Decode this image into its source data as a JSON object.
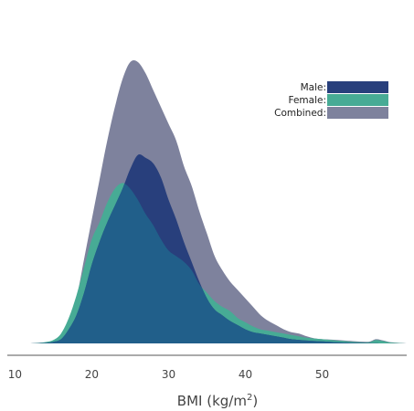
{
  "chart_data": {
    "type": "area",
    "title": "",
    "xlabel": "BMI (kg/m",
    "xlabel_sup": "2",
    "xlabel_close": ")",
    "ylabel": "",
    "xlim": [
      9,
      61
    ],
    "ylim": [
      0,
      1.0
    ],
    "grid": false,
    "legend_placement": "top-right",
    "x_ticks": [
      "10",
      "20",
      "30",
      "40",
      "50"
    ],
    "x_tick_values": [
      10,
      20,
      30,
      40,
      50
    ],
    "series": [
      {
        "name": "Combined:",
        "key": "combined",
        "color": "#7e829d",
        "points": [
          [
            9,
            0
          ],
          [
            12,
            0
          ],
          [
            14,
            0.003
          ],
          [
            15,
            0.01
          ],
          [
            16,
            0.03
          ],
          [
            17,
            0.08
          ],
          [
            18,
            0.16
          ],
          [
            19,
            0.3
          ],
          [
            20,
            0.44
          ],
          [
            21,
            0.58
          ],
          [
            22,
            0.72
          ],
          [
            23,
            0.84
          ],
          [
            24,
            0.94
          ],
          [
            25,
            1.0
          ],
          [
            26,
            1.0
          ],
          [
            27,
            0.96
          ],
          [
            28,
            0.9
          ],
          [
            29,
            0.84
          ],
          [
            30,
            0.78
          ],
          [
            31,
            0.72
          ],
          [
            32,
            0.63
          ],
          [
            33,
            0.56
          ],
          [
            34,
            0.47
          ],
          [
            35,
            0.39
          ],
          [
            36,
            0.31
          ],
          [
            37,
            0.26
          ],
          [
            38,
            0.22
          ],
          [
            39,
            0.19
          ],
          [
            40,
            0.16
          ],
          [
            41,
            0.13
          ],
          [
            42,
            0.1
          ],
          [
            43,
            0.08
          ],
          [
            44,
            0.065
          ],
          [
            45,
            0.05
          ],
          [
            46,
            0.04
          ],
          [
            47,
            0.035
          ],
          [
            48,
            0.025
          ],
          [
            49,
            0.018
          ],
          [
            50,
            0.015
          ],
          [
            52,
            0.012
          ],
          [
            54,
            0.008
          ],
          [
            56,
            0.006
          ],
          [
            57,
            0.015
          ],
          [
            58,
            0.01
          ],
          [
            59,
            0.004
          ],
          [
            61,
            0
          ]
        ]
      },
      {
        "name": "Female:",
        "key": "female",
        "color": "#47ab95",
        "points": [
          [
            9,
            0
          ],
          [
            12,
            0
          ],
          [
            14,
            0.005
          ],
          [
            15,
            0.012
          ],
          [
            16,
            0.035
          ],
          [
            17,
            0.09
          ],
          [
            18,
            0.17
          ],
          [
            19,
            0.27
          ],
          [
            20,
            0.37
          ],
          [
            21,
            0.43
          ],
          [
            22,
            0.5
          ],
          [
            23,
            0.55
          ],
          [
            24,
            0.57
          ],
          [
            25,
            0.55
          ],
          [
            26,
            0.51
          ],
          [
            27,
            0.46
          ],
          [
            28,
            0.42
          ],
          [
            29,
            0.37
          ],
          [
            30,
            0.33
          ],
          [
            31,
            0.31
          ],
          [
            32,
            0.29
          ],
          [
            33,
            0.26
          ],
          [
            34,
            0.21
          ],
          [
            35,
            0.18
          ],
          [
            36,
            0.15
          ],
          [
            37,
            0.13
          ],
          [
            38,
            0.115
          ],
          [
            39,
            0.09
          ],
          [
            40,
            0.075
          ],
          [
            41,
            0.06
          ],
          [
            42,
            0.05
          ],
          [
            43,
            0.045
          ],
          [
            44,
            0.04
          ],
          [
            45,
            0.035
          ],
          [
            46,
            0.03
          ],
          [
            47,
            0.025
          ],
          [
            48,
            0.02
          ],
          [
            50,
            0.015
          ],
          [
            52,
            0.01
          ],
          [
            54,
            0.006
          ],
          [
            56,
            0.004
          ],
          [
            57,
            0.012
          ],
          [
            58,
            0.008
          ],
          [
            59,
            0.003
          ],
          [
            61,
            0
          ]
        ]
      },
      {
        "name": "Male:",
        "key": "male",
        "color": "#283f7c",
        "points": [
          [
            9,
            0
          ],
          [
            12,
            0
          ],
          [
            14,
            0.002
          ],
          [
            15,
            0.006
          ],
          [
            16,
            0.015
          ],
          [
            17,
            0.05
          ],
          [
            18,
            0.1
          ],
          [
            19,
            0.18
          ],
          [
            20,
            0.28
          ],
          [
            21,
            0.36
          ],
          [
            22,
            0.43
          ],
          [
            23,
            0.49
          ],
          [
            24,
            0.55
          ],
          [
            25,
            0.62
          ],
          [
            26,
            0.67
          ],
          [
            27,
            0.66
          ],
          [
            28,
            0.64
          ],
          [
            29,
            0.59
          ],
          [
            30,
            0.51
          ],
          [
            31,
            0.44
          ],
          [
            32,
            0.36
          ],
          [
            33,
            0.29
          ],
          [
            34,
            0.22
          ],
          [
            35,
            0.16
          ],
          [
            36,
            0.12
          ],
          [
            37,
            0.1
          ],
          [
            38,
            0.08
          ],
          [
            39,
            0.065
          ],
          [
            40,
            0.05
          ],
          [
            41,
            0.04
          ],
          [
            42,
            0.035
          ],
          [
            43,
            0.03
          ],
          [
            44,
            0.025
          ],
          [
            45,
            0.02
          ],
          [
            46,
            0.015
          ],
          [
            48,
            0.01
          ],
          [
            50,
            0.007
          ],
          [
            52,
            0.004
          ],
          [
            54,
            0.002
          ],
          [
            56,
            0.001
          ],
          [
            58,
            0
          ],
          [
            61,
            0
          ]
        ]
      }
    ],
    "legend": [
      {
        "label": "Male:",
        "color": "#283f7c"
      },
      {
        "label": "Female:",
        "color": "#47ab95"
      },
      {
        "label": "Combined:",
        "color": "#7e829d"
      }
    ],
    "overlap_color": "#215f8a"
  }
}
